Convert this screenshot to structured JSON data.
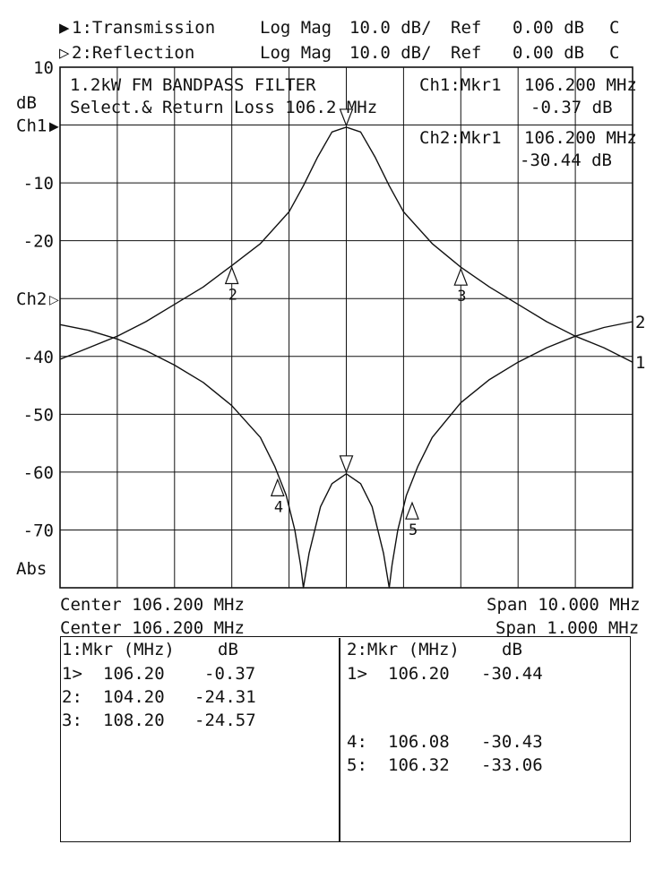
{
  "header": {
    "ch1": {
      "symbol": "▶",
      "label": "1:Transmission",
      "format": "Log Mag",
      "scale": "10.0 dB/",
      "ref_label": "Ref",
      "ref_value": "0.00 dB",
      "flag": "C"
    },
    "ch2": {
      "symbol": "▷",
      "label": "2:Reflection",
      "format": "Log Mag",
      "scale": "10.0 dB/",
      "ref_label": "Ref",
      "ref_value": "0.00 dB",
      "flag": "C"
    }
  },
  "chart_data": {
    "type": "line",
    "title": "1.2kW FM BANDPASS FILTER",
    "subtitle": "Select.& Return Loss 106.2 MHz",
    "ylabel": "dB",
    "y_unit_bottom": "Abs",
    "ylim": [
      -80,
      10
    ],
    "xlim": [
      101.2,
      111.2
    ],
    "y_tick_labels": [
      {
        "value": 10,
        "text": "10"
      },
      {
        "value": -10,
        "text": "-10"
      },
      {
        "value": -20,
        "text": "-20"
      },
      {
        "value": -40,
        "text": "-40"
      },
      {
        "value": -50,
        "text": "-50"
      },
      {
        "value": -60,
        "text": "-60"
      },
      {
        "value": -70,
        "text": "-70"
      }
    ],
    "ref_markers": [
      {
        "text": "Ch1",
        "symbol": "▶",
        "value": 0
      },
      {
        "text": "Ch2",
        "symbol": "▷",
        "value": -30
      }
    ],
    "grid": true,
    "series": [
      {
        "end_label": "1",
        "x": [
          101.2,
          101.7,
          102.2,
          102.7,
          103.2,
          103.7,
          104.2,
          104.7,
          105.2,
          105.45,
          105.7,
          105.95,
          106.2,
          106.45,
          106.7,
          106.95,
          107.2,
          107.7,
          108.2,
          108.7,
          109.2,
          109.7,
          110.2,
          110.7,
          111.2
        ],
        "values": [
          -40.5,
          -38.5,
          -36.5,
          -34,
          -31,
          -28,
          -24.3,
          -20.5,
          -15,
          -10.5,
          -5.5,
          -1.2,
          -0.37,
          -1.2,
          -5.5,
          -10.5,
          -15,
          -20.5,
          -24.57,
          -28,
          -31,
          -34,
          -36.5,
          -38.5,
          -41
        ]
      },
      {
        "end_label": "2",
        "x": [
          101.2,
          101.7,
          102.2,
          102.7,
          103.2,
          103.7,
          104.2,
          104.7,
          104.95,
          105.15,
          105.3,
          105.4,
          105.45,
          105.55,
          105.75,
          105.95,
          106.2,
          106.45,
          106.65,
          106.85,
          106.95,
          107.0,
          107.1,
          107.25,
          107.45,
          107.7,
          108.2,
          108.7,
          109.2,
          109.7,
          110.2,
          110.7,
          111.2
        ],
        "values": [
          -34.5,
          -35.5,
          -37,
          -39,
          -41.5,
          -44.5,
          -48.5,
          -54,
          -59,
          -64,
          -70,
          -76,
          -80,
          -74,
          -66,
          -62,
          -60.3,
          -62,
          -66,
          -74,
          -80,
          -76,
          -70,
          -64,
          -59,
          -54,
          -48,
          -44,
          -41,
          -38.5,
          -36.5,
          -35,
          -34
        ]
      }
    ],
    "markers": [
      {
        "id": "1",
        "channel": 1,
        "x": 106.2,
        "y": -0.37,
        "style": "tip"
      },
      {
        "id": "2",
        "channel": 1,
        "x": 104.2,
        "y": -24.31,
        "style": "arrow"
      },
      {
        "id": "3",
        "channel": 1,
        "x": 108.2,
        "y": -24.57,
        "style": "arrow"
      },
      {
        "id": "1",
        "channel": 2,
        "x": 106.2,
        "y": -60.3,
        "style": "tip"
      },
      {
        "id": "4",
        "channel": 2,
        "x": 105.0,
        "y": -61,
        "style": "arrow"
      },
      {
        "id": "5",
        "channel": 2,
        "x": 107.35,
        "y": -65,
        "style": "arrow"
      }
    ]
  },
  "marker_readout": {
    "ch1": {
      "label": "Ch1:Mkr1",
      "freq": "106.200 MHz",
      "value": "-0.37 dB"
    },
    "ch2": {
      "label": "Ch2:Mkr1",
      "freq": "106.200 MHz",
      "value": "-30.44 dB"
    }
  },
  "footer": {
    "center1": "Center 106.200 MHz",
    "span1": "Span 10.000 MHz",
    "center2": "Center 106.200 MHz",
    "span2": "Span 1.000 MHz"
  },
  "table": {
    "ch1": {
      "header_mkr": "1:Mkr (MHz)",
      "header_db": "dB",
      "rows": [
        {
          "id": "1>",
          "freq": "106.20",
          "db": "-0.37"
        },
        {
          "id": "2:",
          "freq": "104.20",
          "db": "-24.31"
        },
        {
          "id": "3:",
          "freq": "108.20",
          "db": "-24.57"
        }
      ]
    },
    "ch2": {
      "header_mkr": "2:Mkr (MHz)",
      "header_db": "dB",
      "rows": [
        {
          "id": "1>",
          "freq": "106.20",
          "db": "-30.44"
        },
        {
          "id": "4:",
          "freq": "106.08",
          "db": "-30.43"
        },
        {
          "id": "5:",
          "freq": "106.32",
          "db": "-33.06"
        }
      ]
    }
  }
}
